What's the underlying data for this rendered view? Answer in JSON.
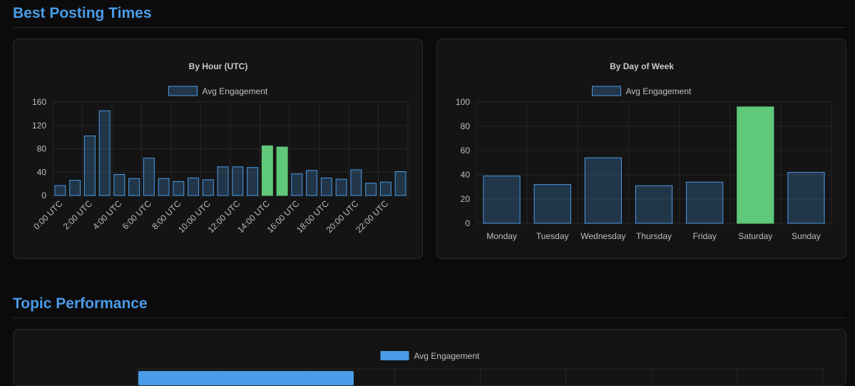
{
  "sections": {
    "best_posting_times": "Best Posting Times",
    "topic_performance": "Topic Performance"
  },
  "colors": {
    "bar_fill": "rgba(74,155,232,0.25)",
    "bar_stroke": "#4a9be8",
    "highlight_fill": "#5fc879",
    "highlight_stroke": "#5fc879",
    "topic_bar": "#4a9be8"
  },
  "chart_data": [
    {
      "type": "bar",
      "title": "By Hour (UTC)",
      "legend": "Avg Engagement",
      "categories": [
        "0:00 UTC",
        "1:00 UTC",
        "2:00 UTC",
        "3:00 UTC",
        "4:00 UTC",
        "5:00 UTC",
        "6:00 UTC",
        "7:00 UTC",
        "8:00 UTC",
        "9:00 UTC",
        "10:00 UTC",
        "11:00 UTC",
        "12:00 UTC",
        "13:00 UTC",
        "14:00 UTC",
        "15:00 UTC",
        "16:00 UTC",
        "17:00 UTC",
        "18:00 UTC",
        "19:00 UTC",
        "20:00 UTC",
        "21:00 UTC",
        "22:00 UTC",
        "23:00 UTC"
      ],
      "tick_labels": [
        "0:00 UTC",
        "2:00 UTC",
        "4:00 UTC",
        "6:00 UTC",
        "8:00 UTC",
        "10:00 UTC",
        "12:00 UTC",
        "14:00 UTC",
        "16:00 UTC",
        "18:00 UTC",
        "20:00 UTC",
        "22:00 UTC"
      ],
      "values": [
        17,
        26,
        102,
        145,
        36,
        29,
        64,
        29,
        24,
        30,
        27,
        49,
        49,
        48,
        85,
        83,
        37,
        43,
        30,
        28,
        44,
        21,
        23,
        41
      ],
      "highlight": [
        "14:00 UTC",
        "15:00 UTC"
      ],
      "ylim": [
        0,
        160
      ],
      "yticks": [
        0,
        40,
        80,
        120,
        160
      ]
    },
    {
      "type": "bar",
      "title": "By Day of Week",
      "legend": "Avg Engagement",
      "categories": [
        "Monday",
        "Tuesday",
        "Wednesday",
        "Thursday",
        "Friday",
        "Saturday",
        "Sunday"
      ],
      "tick_labels": [
        "Monday",
        "Tuesday",
        "Wednesday",
        "Thursday",
        "Friday",
        "Saturday",
        "Sunday"
      ],
      "values": [
        39,
        32,
        54,
        31,
        34,
        96,
        42
      ],
      "highlight": [
        "Saturday"
      ],
      "ylim": [
        0,
        100
      ],
      "yticks": [
        0,
        20,
        40,
        60,
        80,
        100
      ]
    },
    {
      "type": "bar",
      "orientation": "horizontal",
      "legend": "Avg Engagement"
    }
  ]
}
